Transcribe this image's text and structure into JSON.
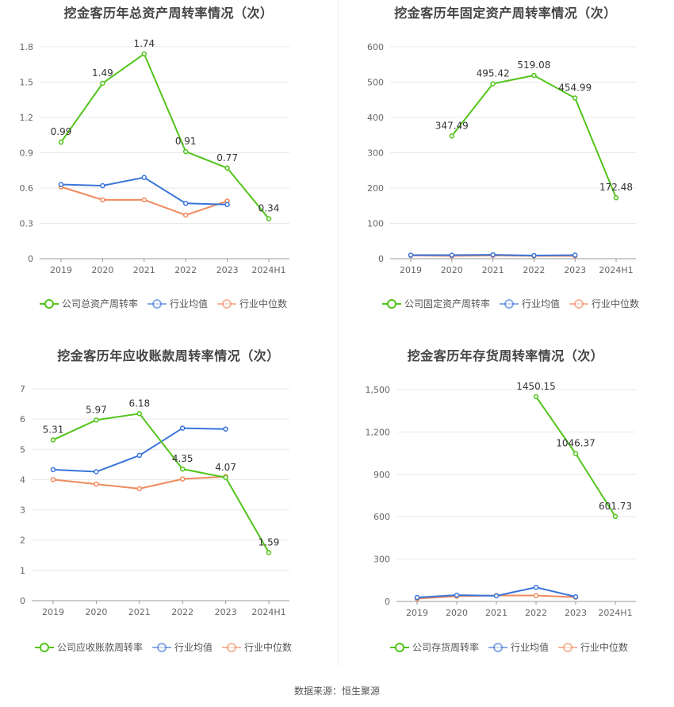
{
  "footer": {
    "source": "数据来源：恒生聚源"
  },
  "legend_colors": {
    "company": "#52c41a",
    "avg": "#3a75d9",
    "median": "#f08a5d"
  },
  "chart_data": [
    {
      "type": "line",
      "title": "挖金客历年总资产周转率情况（次）",
      "categories": [
        "2019",
        "2020",
        "2021",
        "2022",
        "2023",
        "2024H1"
      ],
      "yticks": [
        "0",
        "0.3",
        "0.6",
        "0.9",
        "1.2",
        "1.5",
        "1.8"
      ],
      "ylim": [
        0,
        1.8
      ],
      "series": [
        {
          "name": "公司总资产周转率",
          "values": [
            0.99,
            1.49,
            1.74,
            0.91,
            0.77,
            0.34
          ],
          "labels": [
            "0.99",
            "1.49",
            "1.74",
            "0.91",
            "0.77",
            "0.34"
          ]
        },
        {
          "name": "行业均值",
          "values": [
            0.63,
            0.62,
            0.69,
            0.47,
            0.46,
            null
          ]
        },
        {
          "name": "行业中位数",
          "values": [
            0.61,
            0.5,
            0.5,
            0.37,
            0.49,
            null
          ]
        }
      ]
    },
    {
      "type": "line",
      "title": "挖金客历年固定资产周转率情况（次）",
      "categories": [
        "2019",
        "2020",
        "2021",
        "2022",
        "2023",
        "2024H1"
      ],
      "yticks": [
        "0",
        "100",
        "200",
        "300",
        "400",
        "500",
        "600"
      ],
      "ylim": [
        0,
        600
      ],
      "series": [
        {
          "name": "公司固定资产周转率",
          "values": [
            null,
            347.49,
            495.42,
            519.08,
            454.99,
            172.48
          ],
          "labels": [
            "",
            "347.49",
            "495.42",
            "519.08",
            "454.99",
            "172.48"
          ]
        },
        {
          "name": "行业均值",
          "values": [
            10,
            10,
            11,
            9,
            10,
            null
          ]
        },
        {
          "name": "行业中位数",
          "values": [
            9,
            8,
            9,
            8,
            8,
            null
          ]
        }
      ]
    },
    {
      "type": "line",
      "title": "挖金客历年应收账款周转率情况（次）",
      "categories": [
        "2019",
        "2020",
        "2021",
        "2022",
        "2023",
        "2024H1"
      ],
      "yticks": [
        "0",
        "1",
        "2",
        "3",
        "4",
        "5",
        "6",
        "7"
      ],
      "ylim": [
        0,
        7
      ],
      "series": [
        {
          "name": "公司应收账款周转率",
          "values": [
            5.31,
            5.97,
            6.18,
            4.35,
            4.07,
            1.59
          ],
          "labels": [
            "5.31",
            "5.97",
            "6.18",
            "4.35",
            "4.07",
            "1.59"
          ]
        },
        {
          "name": "行业均值",
          "values": [
            4.33,
            4.26,
            4.8,
            5.7,
            5.67,
            null
          ]
        },
        {
          "name": "行业中位数",
          "values": [
            4.0,
            3.85,
            3.7,
            4.02,
            4.1,
            null
          ]
        }
      ]
    },
    {
      "type": "line",
      "title": "挖金客历年存货周转率情况（次）",
      "categories": [
        "2019",
        "2020",
        "2021",
        "2022",
        "2023",
        "2024H1"
      ],
      "yticks": [
        "0",
        "300",
        "600",
        "900",
        "1,200",
        "1,500"
      ],
      "ylim": [
        0,
        1500
      ],
      "series": [
        {
          "name": "公司存货周转率",
          "values": [
            null,
            null,
            null,
            1450.15,
            1046.37,
            601.73
          ],
          "labels": [
            "",
            "",
            "",
            "1450.15",
            "1046.37",
            "601.73"
          ]
        },
        {
          "name": "行业均值",
          "values": [
            28,
            45,
            40,
            100,
            33,
            null
          ]
        },
        {
          "name": "行业中位数",
          "values": [
            20,
            37,
            42,
            42,
            30,
            null
          ]
        }
      ]
    }
  ]
}
